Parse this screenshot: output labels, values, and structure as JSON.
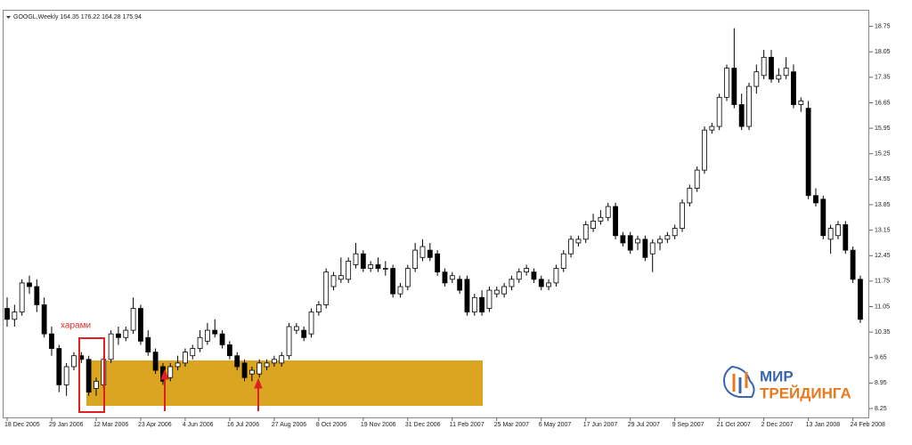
{
  "chart_data": {
    "type": "candlestick",
    "title": "GOOGL,Weekly  164.35 176.22 164.28 175.94",
    "annotation": "харами",
    "watermark": {
      "line1": "МИР",
      "line2": "ТРЕЙДИНГА"
    },
    "up_color": "#ffffff",
    "down_color": "#000000",
    "ylim": [
      8.03,
      19.18
    ],
    "yticks": [
      8.25,
      8.95,
      9.65,
      10.35,
      11.05,
      11.75,
      12.45,
      13.15,
      13.85,
      14.55,
      15.25,
      15.95,
      16.65,
      17.35,
      18.05,
      18.75
    ],
    "categories": [
      "18 Dec 2005",
      null,
      null,
      null,
      null,
      null,
      "29 Jan 2006",
      null,
      null,
      null,
      null,
      null,
      "12 Mar 2006",
      null,
      null,
      null,
      null,
      null,
      "23 Apr 2006",
      null,
      null,
      null,
      null,
      null,
      "4 Jun 2006",
      null,
      null,
      null,
      null,
      null,
      "16 Jul 2006",
      null,
      null,
      null,
      null,
      null,
      "27 Aug 2006",
      null,
      null,
      null,
      null,
      null,
      "8 Oct 2006",
      null,
      null,
      null,
      null,
      null,
      "19 Nov 2006",
      null,
      null,
      null,
      null,
      null,
      "31 Dec 2006",
      null,
      null,
      null,
      null,
      null,
      "11 Feb 2007",
      null,
      null,
      null,
      null,
      null,
      "25 Mar 2007",
      null,
      null,
      null,
      null,
      null,
      "6 May 2007",
      null,
      null,
      null,
      null,
      null,
      "17 Jun 2007",
      null,
      null,
      null,
      null,
      null,
      "29 Jul 2007",
      null,
      null,
      null,
      null,
      null,
      "9 Sep 2007",
      null,
      null,
      null,
      null,
      null,
      "21 Oct 2007",
      null,
      null,
      null,
      null,
      null,
      "2 Dec 2007",
      null,
      null,
      null,
      null,
      null,
      "13 Jan 2008",
      null,
      null,
      null,
      null,
      null,
      "24 Feb 2008",
      null
    ],
    "candles": [
      [
        11.0,
        11.3,
        10.5,
        10.7
      ],
      [
        10.7,
        11.1,
        10.5,
        10.9
      ],
      [
        10.9,
        11.8,
        10.8,
        11.7
      ],
      [
        11.7,
        11.9,
        11.4,
        11.6
      ],
      [
        11.6,
        11.8,
        10.9,
        11.1
      ],
      [
        11.1,
        11.3,
        10.2,
        10.3
      ],
      [
        10.3,
        10.5,
        9.7,
        9.9
      ],
      [
        9.9,
        10.0,
        8.7,
        8.9
      ],
      [
        8.9,
        9.5,
        8.6,
        9.4
      ],
      [
        9.4,
        9.8,
        9.3,
        9.7
      ],
      [
        9.7,
        9.8,
        9.5,
        9.6
      ],
      [
        9.6,
        9.7,
        8.6,
        8.7
      ],
      [
        8.8,
        9.1,
        8.6,
        9.0
      ],
      [
        8.9,
        9.7,
        8.8,
        9.6
      ],
      [
        9.6,
        10.4,
        9.5,
        10.3
      ],
      [
        10.3,
        10.5,
        10.0,
        10.2
      ],
      [
        10.2,
        10.5,
        10.1,
        10.4
      ],
      [
        10.4,
        11.3,
        10.3,
        11.0
      ],
      [
        11.0,
        11.1,
        10.0,
        10.1
      ],
      [
        10.2,
        10.4,
        9.7,
        9.8
      ],
      [
        9.8,
        9.9,
        9.2,
        9.3
      ],
      [
        9.4,
        9.5,
        8.9,
        9.0
      ],
      [
        9.1,
        9.5,
        9.0,
        9.4
      ],
      [
        9.4,
        9.7,
        9.3,
        9.5
      ],
      [
        9.5,
        9.9,
        9.4,
        9.8
      ],
      [
        9.7,
        10.0,
        9.6,
        9.9
      ],
      [
        9.9,
        10.4,
        9.8,
        10.2
      ],
      [
        10.1,
        10.6,
        10.0,
        10.4
      ],
      [
        10.4,
        10.7,
        10.2,
        10.3
      ],
      [
        10.3,
        10.4,
        9.9,
        10.0
      ],
      [
        10.0,
        10.1,
        9.6,
        9.7
      ],
      [
        9.7,
        9.8,
        9.3,
        9.4
      ],
      [
        9.5,
        9.6,
        9.0,
        9.1
      ],
      [
        9.2,
        9.4,
        9.0,
        9.3
      ],
      [
        9.2,
        9.6,
        9.1,
        9.5
      ],
      [
        9.4,
        9.6,
        9.3,
        9.5
      ],
      [
        9.5,
        9.7,
        9.4,
        9.6
      ],
      [
        9.5,
        9.8,
        9.4,
        9.7
      ],
      [
        9.7,
        10.6,
        9.6,
        10.5
      ],
      [
        10.4,
        10.6,
        10.3,
        10.5
      ],
      [
        10.4,
        10.5,
        10.1,
        10.2
      ],
      [
        10.3,
        11.0,
        10.2,
        10.9
      ],
      [
        10.9,
        11.2,
        10.8,
        11.1
      ],
      [
        11.1,
        12.1,
        11.0,
        12.0
      ],
      [
        11.6,
        12.0,
        11.5,
        11.9
      ],
      [
        11.8,
        12.4,
        11.7,
        11.9
      ],
      [
        11.8,
        12.4,
        11.7,
        12.3
      ],
      [
        12.2,
        12.8,
        12.1,
        12.5
      ],
      [
        12.5,
        12.6,
        12.0,
        12.1
      ],
      [
        12.1,
        12.3,
        12.0,
        12.2
      ],
      [
        12.2,
        12.4,
        12.0,
        12.1
      ],
      [
        12.1,
        12.3,
        11.9,
        12.1
      ],
      [
        12.1,
        12.2,
        11.3,
        11.4
      ],
      [
        11.4,
        11.7,
        11.3,
        11.6
      ],
      [
        11.6,
        12.2,
        11.5,
        12.1
      ],
      [
        12.1,
        12.8,
        12.0,
        12.6
      ],
      [
        12.4,
        12.9,
        12.3,
        12.7
      ],
      [
        12.6,
        12.8,
        12.3,
        12.4
      ],
      [
        12.5,
        12.6,
        11.9,
        12.0
      ],
      [
        12.0,
        12.1,
        11.6,
        11.7
      ],
      [
        11.8,
        12.0,
        11.7,
        11.9
      ],
      [
        11.8,
        11.9,
        11.4,
        11.5
      ],
      [
        11.8,
        11.9,
        10.8,
        10.9
      ],
      [
        10.9,
        11.4,
        10.8,
        11.3
      ],
      [
        11.3,
        11.5,
        10.8,
        10.9
      ],
      [
        11.0,
        11.6,
        10.9,
        11.5
      ],
      [
        11.4,
        11.6,
        11.3,
        11.5
      ],
      [
        11.4,
        11.7,
        11.3,
        11.6
      ],
      [
        11.6,
        11.9,
        11.5,
        11.8
      ],
      [
        11.8,
        12.1,
        11.7,
        12.0
      ],
      [
        12.0,
        12.2,
        11.9,
        12.1
      ],
      [
        12.0,
        12.1,
        11.7,
        11.8
      ],
      [
        11.8,
        11.9,
        11.5,
        11.6
      ],
      [
        11.6,
        11.8,
        11.5,
        11.7
      ],
      [
        11.7,
        12.2,
        11.6,
        12.1
      ],
      [
        12.1,
        12.6,
        12.0,
        12.5
      ],
      [
        12.5,
        13.0,
        12.4,
        12.9
      ],
      [
        12.8,
        13.0,
        12.7,
        12.9
      ],
      [
        12.9,
        13.4,
        12.8,
        13.3
      ],
      [
        13.2,
        13.6,
        13.1,
        13.4
      ],
      [
        13.4,
        13.7,
        13.3,
        13.5
      ],
      [
        13.5,
        13.9,
        13.4,
        13.8
      ],
      [
        13.8,
        13.9,
        12.9,
        13.0
      ],
      [
        13.0,
        13.1,
        12.7,
        12.8
      ],
      [
        13.0,
        13.1,
        12.5,
        12.6
      ],
      [
        12.8,
        13.0,
        12.6,
        12.9
      ],
      [
        12.9,
        13.0,
        12.3,
        12.4
      ],
      [
        12.5,
        12.9,
        12.0,
        12.8
      ],
      [
        12.8,
        13.0,
        12.6,
        12.9
      ],
      [
        12.9,
        13.1,
        12.8,
        13.0
      ],
      [
        13.0,
        13.3,
        12.9,
        13.2
      ],
      [
        13.2,
        14.0,
        13.1,
        13.9
      ],
      [
        13.9,
        14.4,
        13.8,
        14.3
      ],
      [
        14.3,
        14.9,
        14.2,
        14.8
      ],
      [
        14.8,
        16.0,
        14.7,
        15.9
      ],
      [
        15.9,
        16.1,
        15.8,
        16.0
      ],
      [
        16.0,
        16.9,
        15.9,
        16.8
      ],
      [
        16.8,
        17.7,
        16.7,
        17.6
      ],
      [
        17.6,
        18.7,
        16.5,
        16.6
      ],
      [
        16.6,
        16.9,
        15.9,
        16.0
      ],
      [
        16.0,
        17.2,
        15.9,
        17.1
      ],
      [
        17.1,
        17.7,
        16.9,
        17.5
      ],
      [
        17.4,
        18.1,
        17.3,
        17.9
      ],
      [
        17.9,
        18.1,
        17.2,
        17.3
      ],
      [
        17.3,
        17.6,
        17.2,
        17.4
      ],
      [
        17.4,
        17.9,
        17.3,
        17.6
      ],
      [
        17.5,
        17.7,
        16.5,
        16.6
      ],
      [
        16.6,
        16.8,
        16.4,
        16.7
      ],
      [
        16.5,
        16.7,
        14.0,
        14.1
      ],
      [
        14.1,
        14.3,
        13.8,
        13.9
      ],
      [
        14.0,
        14.1,
        12.9,
        13.0
      ],
      [
        12.9,
        13.3,
        12.5,
        13.2
      ],
      [
        13.0,
        13.4,
        12.9,
        13.3
      ],
      [
        13.3,
        13.4,
        12.5,
        12.6
      ],
      [
        12.6,
        12.7,
        11.7,
        11.8
      ],
      [
        11.8,
        11.9,
        10.6,
        10.7
      ]
    ]
  }
}
